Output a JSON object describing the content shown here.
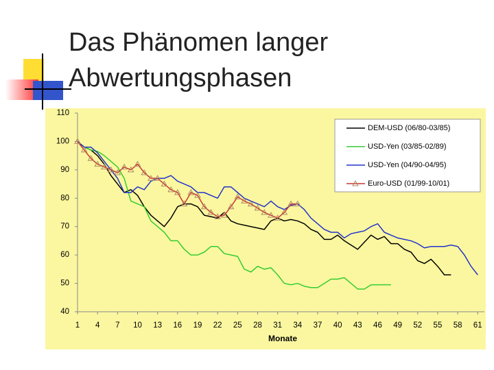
{
  "chart_data": {
    "type": "line",
    "title_lines": [
      "Das Phänomen langer",
      "Abwertungsphasen"
    ],
    "x_label": "Monate",
    "x": [
      1,
      2,
      3,
      4,
      5,
      6,
      7,
      8,
      9,
      10,
      11,
      12,
      13,
      14,
      15,
      16,
      17,
      18,
      19,
      20,
      21,
      22,
      23,
      24,
      25,
      26,
      27,
      28,
      29,
      30,
      31,
      32,
      33,
      34,
      35,
      36,
      37,
      38,
      39,
      40,
      41,
      42,
      43,
      44,
      45,
      46,
      47,
      48,
      49,
      50,
      51,
      52,
      53,
      54,
      55,
      56,
      57,
      58,
      59,
      60,
      61
    ],
    "xlim": [
      1,
      62
    ],
    "xticks": [
      1,
      4,
      7,
      10,
      13,
      16,
      19,
      22,
      25,
      28,
      31,
      34,
      37,
      40,
      43,
      46,
      49,
      52,
      55,
      58,
      61
    ],
    "ylim": [
      40,
      110
    ],
    "yticks": [
      40,
      50,
      60,
      70,
      80,
      90,
      100,
      110
    ],
    "grid": false,
    "legend": "upper right",
    "series": [
      {
        "name": "DEM-USD  (06/80-03/85)",
        "color": "#000000",
        "marker": null,
        "values": [
          100,
          98,
          97,
          95,
          92,
          88,
          85,
          82,
          83,
          81,
          77,
          74,
          72,
          70,
          73,
          77,
          78,
          78,
          77,
          74,
          73.5,
          73,
          75,
          72,
          71,
          70.5,
          70,
          69.5,
          69,
          72,
          73,
          72,
          72.5,
          72,
          71,
          69,
          68,
          65.5,
          65.5,
          67,
          65,
          63.5,
          62,
          64.5,
          67,
          65.5,
          66.5,
          64,
          64,
          62,
          61,
          58,
          57,
          58.5,
          56,
          53,
          53,
          null,
          null,
          null,
          null
        ]
      },
      {
        "name": "USD-Yen (03/85-02/89)",
        "color": "#33cc33",
        "marker": null,
        "values": [
          100,
          98,
          97,
          96.5,
          95,
          93,
          91,
          87,
          79,
          78,
          77,
          72,
          70,
          68,
          65,
          65,
          62,
          60,
          60,
          61,
          63,
          63,
          60.5,
          60,
          59.5,
          55,
          54,
          56,
          55,
          55.5,
          53,
          50,
          49.5,
          50,
          49,
          48.5,
          48.5,
          50,
          51.5,
          51.5,
          52,
          50,
          48,
          48,
          49.5,
          49.5,
          49.5,
          49.5,
          null,
          null,
          null,
          null,
          null,
          null,
          null,
          null,
          null,
          null,
          null,
          null,
          null
        ]
      },
      {
        "name": "USD-Yen (04/90-04/95)",
        "color": "#2233cc",
        "marker": null,
        "values": [
          100,
          98,
          98,
          96,
          93,
          90,
          87,
          82,
          82,
          84,
          83,
          86,
          87,
          87,
          88,
          86,
          85,
          84,
          82,
          82,
          81,
          80,
          84,
          84,
          82,
          80,
          79,
          78,
          77,
          79,
          77,
          76,
          77.5,
          78,
          76,
          73,
          71,
          69,
          68,
          68,
          66,
          67.5,
          68,
          68.5,
          70,
          71,
          68,
          67,
          66,
          65.5,
          65,
          64,
          62.5,
          63,
          63,
          63,
          63.5,
          63,
          60,
          56,
          53
        ]
      },
      {
        "name": "Euro-USD (01/99-10/01)",
        "color": "#cc3333",
        "marker": "triangle",
        "values": [
          100,
          97,
          94,
          92,
          91,
          90,
          89,
          91,
          90,
          92,
          89,
          87,
          87,
          85,
          83,
          82,
          78,
          82,
          81,
          77,
          75,
          73.5,
          74,
          77,
          80.5,
          79,
          78,
          76.5,
          75,
          74,
          73,
          75,
          78,
          78,
          null,
          null,
          null,
          null,
          null,
          null,
          null,
          null,
          null,
          null,
          null,
          null,
          null,
          null,
          null,
          null,
          null,
          null,
          null,
          null,
          null,
          null,
          null,
          null,
          null,
          null,
          null
        ]
      }
    ]
  }
}
